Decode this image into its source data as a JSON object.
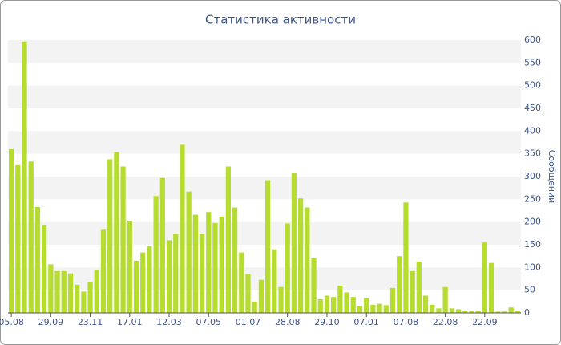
{
  "chart_data": {
    "type": "bar",
    "title": "Статистика активности",
    "y_label": "Сообщений",
    "categories": [
      "05.08",
      null,
      null,
      null,
      null,
      null,
      "29.09",
      null,
      null,
      null,
      null,
      null,
      "23.11",
      null,
      null,
      null,
      null,
      null,
      "17.01",
      null,
      null,
      null,
      null,
      null,
      "12.03",
      null,
      null,
      null,
      null,
      null,
      "07.05",
      null,
      null,
      null,
      null,
      null,
      "01.07",
      null,
      null,
      null,
      null,
      null,
      "28.08",
      null,
      null,
      null,
      null,
      null,
      "29.10",
      null,
      null,
      null,
      null,
      null,
      "07.01",
      null,
      null,
      null,
      null,
      null,
      "07.08",
      null,
      null,
      null,
      null,
      null,
      "22.08",
      null,
      null,
      null,
      null,
      null,
      "22.09",
      null,
      null,
      null,
      null,
      null
    ],
    "values": [
      360,
      325,
      597,
      333,
      233,
      193,
      107,
      92,
      92,
      87,
      62,
      47,
      68,
      95,
      183,
      338,
      354,
      322,
      203,
      115,
      133,
      147,
      257,
      297,
      160,
      173,
      370,
      267,
      216,
      173,
      222,
      198,
      212,
      322,
      232,
      133,
      85,
      25,
      73,
      292,
      140,
      57,
      197,
      307,
      252,
      232,
      120,
      30,
      38,
      35,
      60,
      45,
      35,
      15,
      33,
      18,
      20,
      17,
      55,
      125,
      243,
      92,
      113,
      38,
      18,
      10,
      57,
      10,
      8,
      5,
      5,
      5,
      155,
      110,
      3,
      3,
      12,
      5
    ],
    "color": "#b5dc2e",
    "ylim": [
      0,
      600
    ],
    "yticks": [
      0,
      50,
      100,
      150,
      200,
      250,
      300,
      350,
      400,
      450,
      500,
      550,
      600
    ],
    "grid": true
  }
}
